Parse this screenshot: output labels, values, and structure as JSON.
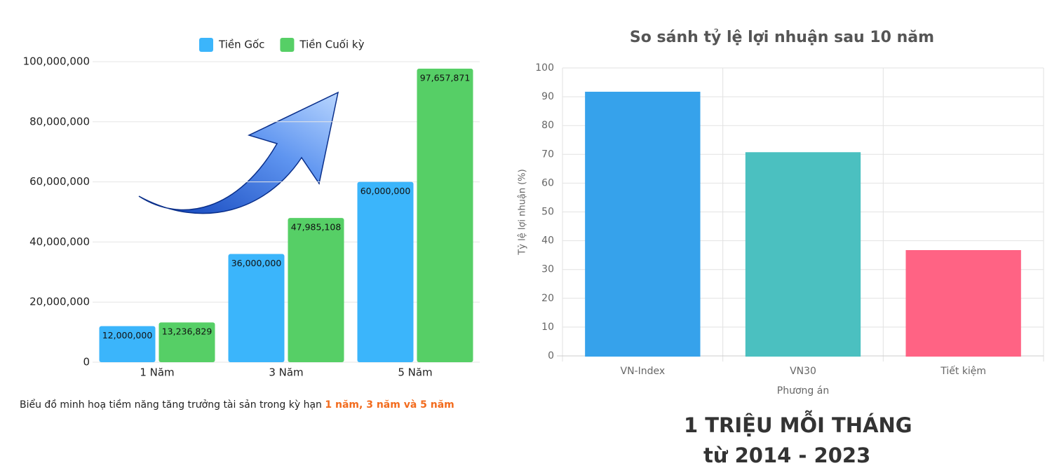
{
  "chart_data": [
    {
      "type": "bar",
      "categories": [
        "1 Năm",
        "3 Năm",
        "5 Năm"
      ],
      "series": [
        {
          "name": "Tiền Gốc",
          "color": "#3bb5fb",
          "values": [
            12000000,
            36000000,
            60000000
          ],
          "value_labels": [
            "12,000,000",
            "36,000,000",
            "60,000,000"
          ]
        },
        {
          "name": "Tiền Cuối kỳ",
          "color": "#56cf66",
          "values": [
            13236829,
            47985108,
            97657871
          ],
          "value_labels": [
            "13,236,829",
            "47,985,108",
            "97,657,871"
          ]
        }
      ],
      "ylim": [
        0,
        100000000
      ],
      "yticks": [
        0,
        {
          "value": 20000000,
          "label": "20,000,000"
        },
        {
          "value": 40000000,
          "label": "40,000,000"
        },
        {
          "value": 60000000,
          "label": "60,000,000"
        },
        {
          "value": 80000000,
          "label": "80,000,000"
        },
        {
          "value": 100000000,
          "label": "100,000,000"
        }
      ],
      "grid": true,
      "legend": "top",
      "caption": [
        "Biểu đồ minh hoạ tiềm năng tăng trưởng tài sản trong kỳ hạn",
        "1 năm, 3 năm và 5 năm"
      ]
    },
    {
      "type": "bar",
      "title": "So sánh tỷ lệ lợi nhuận sau 10 năm",
      "categories": [
        "VN-Index",
        "VN30",
        "Tiết kiệm"
      ],
      "values": [
        91.5,
        70.5,
        36.5
      ],
      "colors": [
        "#36a2eb",
        "#4bc0c0",
        "#ff6384"
      ],
      "xlabel": "Phương án",
      "ylabel": "Tỷ lệ lợi nhuận (%)",
      "ylim": [
        0,
        100
      ],
      "yticks": [
        0,
        10,
        20,
        30,
        40,
        50,
        60,
        70,
        80,
        90,
        100
      ],
      "grid": true,
      "annotations": [
        "1 TRIỆU MỖI THÁNG",
        "từ 2014 - 2023"
      ]
    }
  ]
}
